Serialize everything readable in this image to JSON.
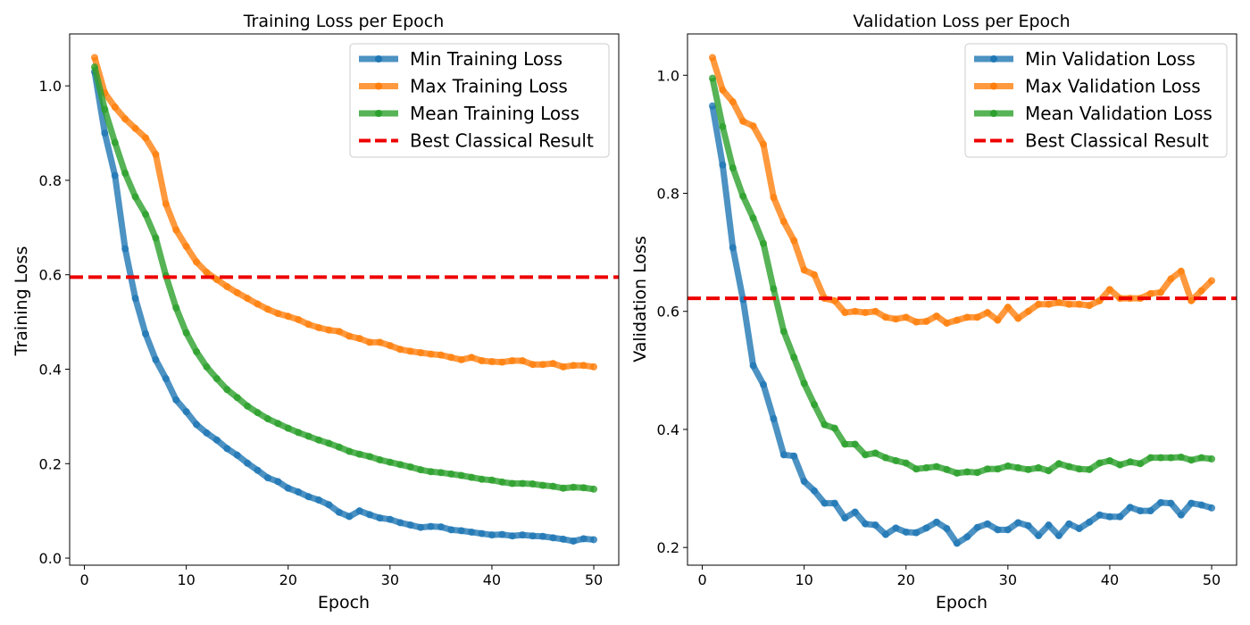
{
  "chart_data": [
    {
      "type": "line",
      "title": "Training Loss per Epoch",
      "xlabel": "Epoch",
      "ylabel": "Training Loss",
      "xlim": [
        -1.45,
        52.45
      ],
      "ylim": [
        -0.015,
        1.11
      ],
      "xticks": [
        "0",
        "10",
        "20",
        "30",
        "40",
        "50"
      ],
      "yticks": [
        "0.0",
        "0.2",
        "0.4",
        "0.6",
        "0.8",
        "1.0"
      ],
      "x": [
        1,
        2,
        3,
        4,
        5,
        6,
        7,
        8,
        9,
        10,
        11,
        12,
        13,
        14,
        15,
        16,
        17,
        18,
        19,
        20,
        21,
        22,
        23,
        24,
        25,
        26,
        27,
        28,
        29,
        30,
        31,
        32,
        33,
        34,
        35,
        36,
        37,
        38,
        39,
        40,
        41,
        42,
        43,
        44,
        45,
        46,
        47,
        48,
        49,
        50
      ],
      "legend_position": "upper-right",
      "series": [
        {
          "name": "Min Training Loss",
          "color": "#1f77b4",
          "values": [
            1.03,
            0.9,
            0.81,
            0.655,
            0.55,
            0.475,
            0.42,
            0.38,
            0.335,
            0.31,
            0.283,
            0.265,
            0.25,
            0.232,
            0.218,
            0.201,
            0.186,
            0.17,
            0.162,
            0.148,
            0.14,
            0.13,
            0.123,
            0.113,
            0.097,
            0.088,
            0.1,
            0.092,
            0.085,
            0.082,
            0.075,
            0.07,
            0.065,
            0.067,
            0.066,
            0.06,
            0.058,
            0.055,
            0.052,
            0.049,
            0.05,
            0.047,
            0.049,
            0.047,
            0.046,
            0.043,
            0.04,
            0.036,
            0.041,
            0.039
          ]
        },
        {
          "name": "Max Training Loss",
          "color": "#ff7f0e",
          "values": [
            1.06,
            0.985,
            0.955,
            0.93,
            0.91,
            0.89,
            0.855,
            0.75,
            0.695,
            0.66,
            0.627,
            0.605,
            0.59,
            0.575,
            0.562,
            0.55,
            0.538,
            0.527,
            0.518,
            0.512,
            0.505,
            0.495,
            0.488,
            0.483,
            0.48,
            0.47,
            0.465,
            0.457,
            0.457,
            0.45,
            0.442,
            0.438,
            0.435,
            0.432,
            0.43,
            0.425,
            0.42,
            0.425,
            0.418,
            0.416,
            0.415,
            0.418,
            0.418,
            0.41,
            0.41,
            0.412,
            0.405,
            0.408,
            0.408,
            0.405
          ]
        },
        {
          "name": "Mean Training Loss",
          "color": "#2ca02c",
          "values": [
            1.04,
            0.95,
            0.88,
            0.815,
            0.765,
            0.728,
            0.678,
            0.598,
            0.53,
            0.477,
            0.437,
            0.405,
            0.38,
            0.357,
            0.34,
            0.322,
            0.308,
            0.295,
            0.285,
            0.275,
            0.266,
            0.258,
            0.25,
            0.243,
            0.235,
            0.226,
            0.22,
            0.215,
            0.208,
            0.203,
            0.198,
            0.193,
            0.187,
            0.183,
            0.181,
            0.178,
            0.175,
            0.171,
            0.167,
            0.165,
            0.161,
            0.158,
            0.158,
            0.157,
            0.154,
            0.152,
            0.148,
            0.15,
            0.149,
            0.146
          ]
        }
      ],
      "reference_line": {
        "name": "Best Classical Result",
        "value": 0.595,
        "color": "#ee0000",
        "style": "dashed"
      }
    },
    {
      "type": "line",
      "title": "Validation Loss per Epoch",
      "xlabel": "Epoch",
      "ylabel": "Validation Loss",
      "xlim": [
        -1.45,
        52.45
      ],
      "ylim": [
        0.17,
        1.07
      ],
      "xticks": [
        "0",
        "10",
        "20",
        "30",
        "40",
        "50"
      ],
      "yticks": [
        "0.2",
        "0.4",
        "0.6",
        "0.8",
        "1.0"
      ],
      "x": [
        1,
        2,
        3,
        4,
        5,
        6,
        7,
        8,
        9,
        10,
        11,
        12,
        13,
        14,
        15,
        16,
        17,
        18,
        19,
        20,
        21,
        22,
        23,
        24,
        25,
        26,
        27,
        28,
        29,
        30,
        31,
        32,
        33,
        34,
        35,
        36,
        37,
        38,
        39,
        40,
        41,
        42,
        43,
        44,
        45,
        46,
        47,
        48,
        49,
        50
      ],
      "legend_position": "upper-right",
      "series": [
        {
          "name": "Min Validation Loss",
          "color": "#1f77b4",
          "values": [
            0.948,
            0.848,
            0.708,
            0.62,
            0.508,
            0.476,
            0.418,
            0.357,
            0.355,
            0.312,
            0.296,
            0.275,
            0.275,
            0.25,
            0.26,
            0.24,
            0.238,
            0.222,
            0.233,
            0.226,
            0.225,
            0.233,
            0.243,
            0.232,
            0.207,
            0.218,
            0.234,
            0.24,
            0.23,
            0.23,
            0.242,
            0.237,
            0.22,
            0.238,
            0.22,
            0.24,
            0.232,
            0.243,
            0.255,
            0.252,
            0.252,
            0.268,
            0.262,
            0.262,
            0.276,
            0.275,
            0.255,
            0.275,
            0.272,
            0.267
          ]
        },
        {
          "name": "Max Validation Loss",
          "color": "#ff7f0e",
          "values": [
            1.03,
            0.975,
            0.955,
            0.922,
            0.914,
            0.883,
            0.793,
            0.752,
            0.72,
            0.67,
            0.662,
            0.622,
            0.618,
            0.598,
            0.6,
            0.598,
            0.6,
            0.59,
            0.587,
            0.59,
            0.582,
            0.583,
            0.592,
            0.58,
            0.585,
            0.59,
            0.59,
            0.598,
            0.585,
            0.607,
            0.588,
            0.6,
            0.612,
            0.612,
            0.615,
            0.612,
            0.612,
            0.61,
            0.618,
            0.637,
            0.622,
            0.622,
            0.622,
            0.63,
            0.632,
            0.655,
            0.668,
            0.618,
            0.635,
            0.652
          ]
        },
        {
          "name": "Mean Validation Loss",
          "color": "#2ca02c",
          "values": [
            0.995,
            0.913,
            0.843,
            0.795,
            0.758,
            0.715,
            0.638,
            0.566,
            0.522,
            0.478,
            0.442,
            0.408,
            0.402,
            0.375,
            0.375,
            0.357,
            0.36,
            0.352,
            0.347,
            0.343,
            0.333,
            0.335,
            0.337,
            0.332,
            0.326,
            0.328,
            0.327,
            0.333,
            0.333,
            0.338,
            0.335,
            0.332,
            0.335,
            0.33,
            0.342,
            0.337,
            0.333,
            0.332,
            0.343,
            0.347,
            0.34,
            0.345,
            0.342,
            0.352,
            0.352,
            0.352,
            0.353,
            0.348,
            0.352,
            0.35
          ]
        }
      ],
      "reference_line": {
        "name": "Best Classical Result",
        "value": 0.622,
        "color": "#ee0000",
        "style": "dashed"
      }
    }
  ]
}
